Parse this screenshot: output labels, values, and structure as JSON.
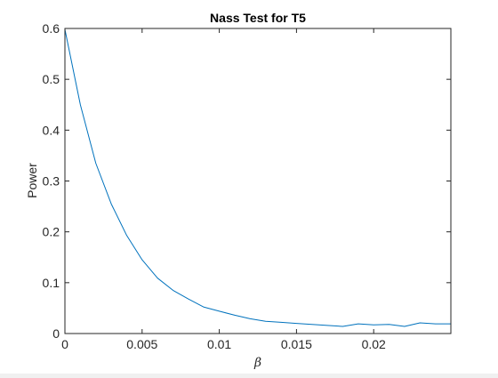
{
  "chart_data": {
    "type": "line",
    "title": "Nass Test for T5",
    "xlabel": "β",
    "ylabel": "Power",
    "xlim": [
      0,
      0.025
    ],
    "ylim": [
      0,
      0.6
    ],
    "xticks": [
      "0",
      "0.005",
      "0.01",
      "0.015",
      "0.02"
    ],
    "xtick_values": [
      0,
      0.005,
      0.01,
      0.015,
      0.02
    ],
    "yticks": [
      "0",
      "0.1",
      "0.2",
      "0.3",
      "0.4",
      "0.5",
      "0.6"
    ],
    "ytick_values": [
      0,
      0.1,
      0.2,
      0.3,
      0.4,
      0.5,
      0.6
    ],
    "grid": false,
    "series": [
      {
        "color": "#0072bd",
        "x": [
          0,
          0.001,
          0.002,
          0.003,
          0.004,
          0.005,
          0.006,
          0.007,
          0.008,
          0.009,
          0.01,
          0.011,
          0.012,
          0.013,
          0.014,
          0.015,
          0.016,
          0.017,
          0.018,
          0.019,
          0.02,
          0.021,
          0.022,
          0.023,
          0.024,
          0.025
        ],
        "y": [
          0.598,
          0.45,
          0.335,
          0.255,
          0.193,
          0.145,
          0.109,
          0.085,
          0.068,
          0.052,
          0.044,
          0.036,
          0.029,
          0.024,
          0.022,
          0.02,
          0.018,
          0.016,
          0.014,
          0.019,
          0.017,
          0.018,
          0.014,
          0.021,
          0.019,
          0.019
        ]
      }
    ]
  }
}
